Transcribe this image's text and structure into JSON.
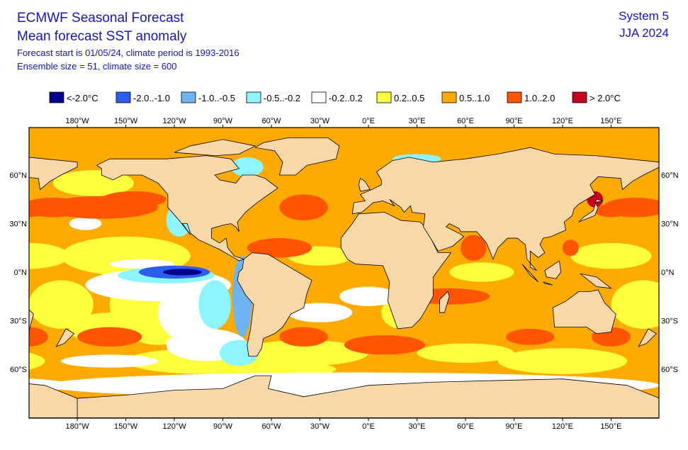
{
  "header": {
    "title": "ECMWF Seasonal Forecast",
    "subtitle": "Mean forecast SST anomaly",
    "line3": "Forecast start is 01/05/24, climate period is 1993-2016",
    "line4": "Ensemble size = 51, climate size = 600",
    "system": "System 5",
    "season": "JJA 2024"
  },
  "legend": [
    {
      "label": "<-2.0°C",
      "color": "#00008c"
    },
    {
      "label": "-2.0..-1.0",
      "color": "#2b5ef0"
    },
    {
      "label": "-1.0..-0.5",
      "color": "#6eb4f0"
    },
    {
      "label": "-0.5..-0.2",
      "color": "#8cf5ff"
    },
    {
      "label": "-0.2..0.2",
      "color": "#ffffff"
    },
    {
      "label": "0.2..0.5",
      "color": "#ffff3c"
    },
    {
      "label": "0.5..1.0",
      "color": "#ffaa00"
    },
    {
      "label": "1.0..2.0",
      "color": "#ff5500"
    },
    {
      "label": "> 2.0°C",
      "color": "#c8001e"
    }
  ],
  "lon_labels": [
    "180°W",
    "150°W",
    "120°W",
    "90°W",
    "60°W",
    "30°W",
    "0°E",
    "30°E",
    "60°E",
    "90°E",
    "120°E",
    "150°E"
  ],
  "lat_labels": [
    "60°N",
    "30°N",
    "0°N",
    "30°S",
    "60°S"
  ]
}
